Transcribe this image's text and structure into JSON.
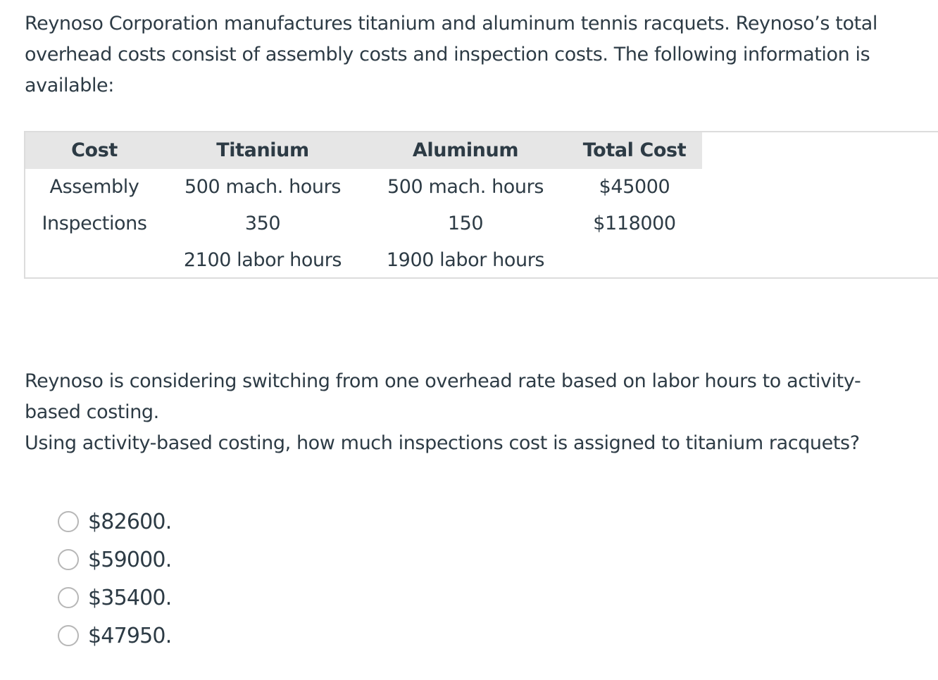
{
  "intro": {
    "line1": "Reynoso Corporation manufactures titanium and aluminum tennis racquets. Reynoso’s total",
    "line2": "overhead costs consist of assembly costs and inspection costs. The following information is",
    "line3": "available:"
  },
  "table": {
    "headers": [
      "Cost",
      "Titanium",
      "Aluminum",
      "Total Cost"
    ],
    "rows": [
      [
        "Assembly",
        "500 mach. hours",
        "500 mach. hours",
        "$45000"
      ],
      [
        "Inspections",
        "350",
        "150",
        "$118000"
      ],
      [
        "",
        "2100 labor hours",
        "1900 labor hours",
        ""
      ]
    ]
  },
  "question": {
    "line1": "Reynoso is considering switching from one overhead rate based on labor hours to activity-",
    "line2": "based costing.",
    "line3": "Using activity-based costing, how much inspections cost is assigned to titanium racquets?"
  },
  "options": [
    {
      "label": "$82600."
    },
    {
      "label": "$59000."
    },
    {
      "label": "$35400."
    },
    {
      "label": "$47950."
    }
  ]
}
